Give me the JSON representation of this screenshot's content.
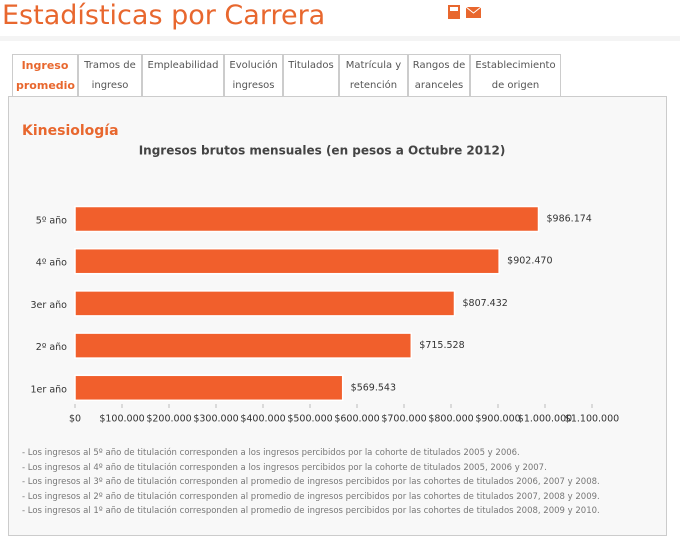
{
  "header": {
    "title": "Estadísticas por Carrera"
  },
  "tabs": [
    "Ingreso promedio",
    "Tramos de ingreso",
    "Empleabilidad",
    "Evolución ingresos",
    "Titulados",
    "Matrícula y retención",
    "Rangos de aranceles",
    "Establecimiento de origen"
  ],
  "active_tab": 0,
  "section_title": "Kinesiología",
  "chart_data": {
    "type": "hbar",
    "title": "Ingresos brutos mensuales (en pesos a Octubre 2012)",
    "categories": [
      "5º año",
      "4º año",
      "3er año",
      "2º año",
      "1er año"
    ],
    "values": [
      986174,
      902470,
      807432,
      715528,
      569543
    ],
    "value_labels": [
      "$986.174",
      "$902.470",
      "$807.432",
      "$715.528",
      "$569.543"
    ],
    "color": "#f15f2c",
    "xlim": [
      0,
      1100000
    ],
    "xticks": [
      {
        "value": 0,
        "label": "$0"
      },
      {
        "value": 100000,
        "label": "$100.000"
      },
      {
        "value": 200000,
        "label": "$200.000"
      },
      {
        "value": 300000,
        "label": "$300.000"
      },
      {
        "value": 400000,
        "label": "$400.000"
      },
      {
        "value": 500000,
        "label": "$500.000"
      },
      {
        "value": 600000,
        "label": "$600.000"
      },
      {
        "value": 700000,
        "label": "$700.000"
      },
      {
        "value": 800000,
        "label": "$800.000"
      },
      {
        "value": 900000,
        "label": "$900.000"
      },
      {
        "value": 1000000,
        "label": "$1.000.000"
      },
      {
        "value": 1100000,
        "label": "$1.100.000"
      }
    ],
    "grid": false
  },
  "notes": [
    "- Los ingresos al 5º año de titulación corresponden a los ingresos percibidos por la cohorte de titulados 2005 y 2006.",
    "- Los ingresos al 4º año de titulación corresponden a los ingresos percibidos por la cohorte de titulados 2005, 2006 y 2007.",
    "- Los ingresos al 3º año de titulación corresponden al promedio de ingresos percibidos por las cohortes de titulados 2006, 2007 y 2008.",
    "- Los ingresos al 2º año de titulación corresponden al promedio de ingresos percibidos por las cohortes de titulados 2007, 2008 y 2009.",
    "- Los ingresos al 1º año de titulación corresponden al promedio de ingresos percibidos por las cohortes de titulados 2008, 2009 y 2010."
  ]
}
